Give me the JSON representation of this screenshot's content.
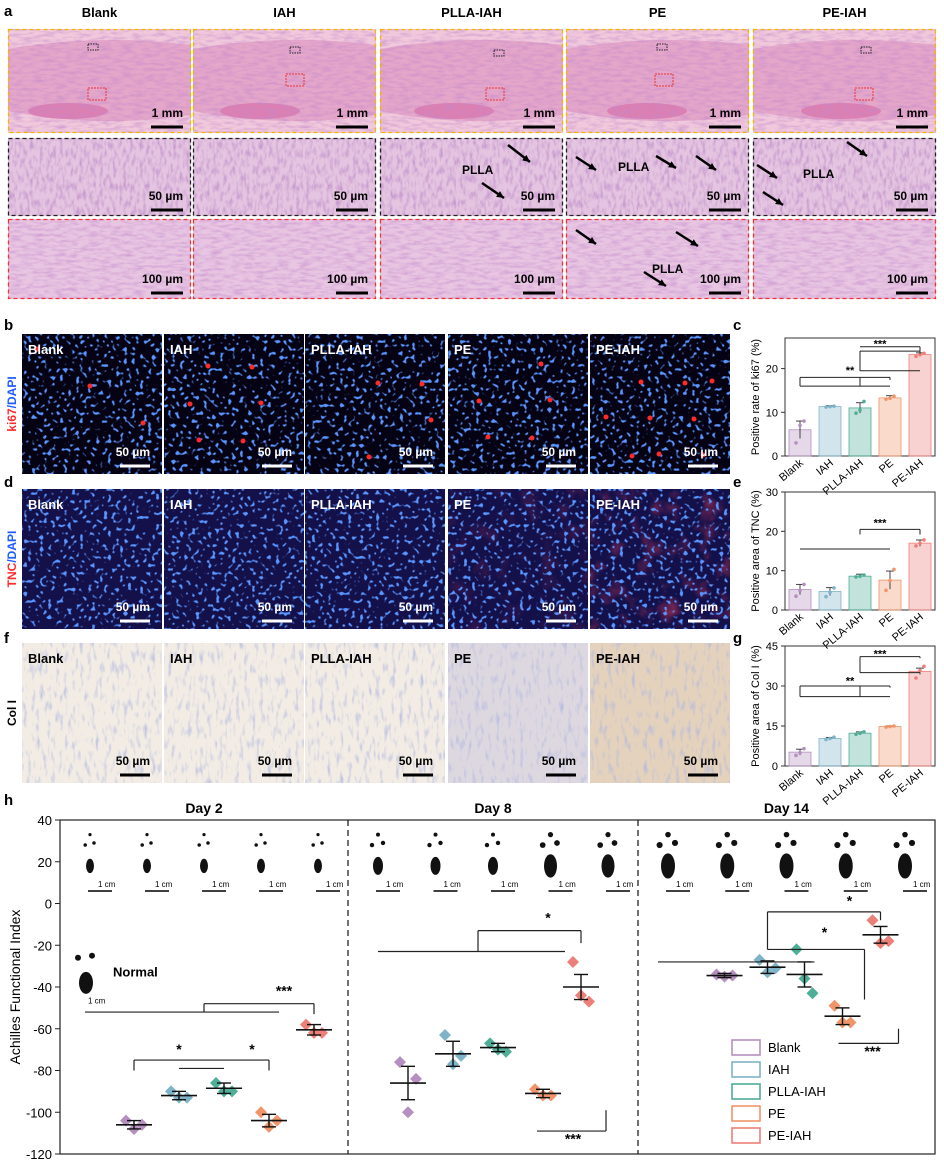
{
  "panel_letters": {
    "a": "a",
    "b": "b",
    "c": "c",
    "d": "d",
    "e": "e",
    "f": "f",
    "g": "g",
    "h": "h"
  },
  "groups": [
    "Blank",
    "IAH",
    "PLLA-IAH",
    "PE",
    "PE-IAH"
  ],
  "he": {
    "scale_top": "1 mm",
    "scale_mid": "50 µm",
    "scale_bot": "100 µm",
    "plla_label": "PLLA"
  },
  "if_ki67": {
    "ylabel_a": "ki67",
    "ylabel_b": "/DAPI",
    "scale": "50 µm"
  },
  "if_tnc": {
    "ylabel_a": "TNC",
    "ylabel_b": "/DAPI",
    "scale": "50 µm"
  },
  "ihc_col": {
    "ylabel": "Col I",
    "scale": "50 µm"
  },
  "colors": {
    "Blank": "#b58fbf",
    "IAH": "#7fb3c8",
    "PLLA-IAH": "#4fae98",
    "PE": "#f0956a",
    "PE-IAH": "#ec7f77",
    "ki67": "#ff2a2a",
    "dapi": "#1f5cff"
  },
  "chart_data": [
    {
      "type": "bar",
      "id": "c",
      "categories": [
        "Blank",
        "IAH",
        "PLLA-IAH",
        "PE",
        "PE-IAH"
      ],
      "values": [
        6,
        11.3,
        11,
        13.3,
        23.2
      ],
      "errors": [
        2,
        0.2,
        1.2,
        0.5,
        0.4
      ],
      "points": [
        [
          3,
          7,
          8
        ],
        [
          11.2,
          11.3,
          11.4
        ],
        [
          9.8,
          10.5,
          12.5
        ],
        [
          13,
          13.2,
          13.7
        ],
        [
          22.8,
          23.2,
          23.5
        ]
      ],
      "ylabel": "Positive rate of ki67 (%)",
      "ylim": [
        0,
        27
      ],
      "yticks": [
        0,
        10,
        20
      ],
      "sig": [
        {
          "text": "**"
        },
        {
          "text": "***"
        }
      ]
    },
    {
      "type": "bar",
      "id": "e",
      "categories": [
        "Blank",
        "IAH",
        "PLLA-IAH",
        "PE",
        "PE-IAH"
      ],
      "values": [
        5.2,
        4.7,
        8.6,
        7.6,
        17
      ],
      "errors": [
        1.3,
        1,
        0.5,
        2.3,
        0.8
      ],
      "points": [
        [
          3.5,
          5,
          6.5
        ],
        [
          3.4,
          4.5,
          5.6
        ],
        [
          8.4,
          8.6,
          8.9
        ],
        [
          5,
          7.5,
          10.3
        ],
        [
          16.3,
          17,
          17.8
        ]
      ],
      "ylabel": "Positive area of TNC (%)",
      "ylim": [
        0,
        30
      ],
      "yticks": [
        0,
        10,
        20,
        30
      ],
      "sig": [
        {
          "text": "***"
        }
      ]
    },
    {
      "type": "bar",
      "id": "g",
      "categories": [
        "Blank",
        "IAH",
        "PLLA-IAH",
        "PE",
        "PE-IAH"
      ],
      "values": [
        5.2,
        10.3,
        12.3,
        14.8,
        35.5
      ],
      "errors": [
        1.1,
        0.4,
        0.5,
        0.2,
        1.2
      ],
      "points": [
        [
          4,
          5,
          6.5
        ],
        [
          9.9,
          10.3,
          10.8
        ],
        [
          11.9,
          12.3,
          12.8
        ],
        [
          14.6,
          14.8,
          15
        ],
        [
          33,
          35.8,
          37.4
        ]
      ],
      "ylabel": "Positive area of Col I (%)",
      "ylim": [
        0,
        45
      ],
      "yticks": [
        0,
        15,
        30,
        45
      ],
      "sig": [
        {
          "text": "**"
        },
        {
          "text": "***"
        }
      ]
    },
    {
      "type": "scatter",
      "id": "h",
      "ylabel": "Achilles Functional Index",
      "ylim": [
        -120,
        40
      ],
      "yticks": [
        40,
        20,
        0,
        -20,
        -40,
        -60,
        -80,
        -100,
        -120
      ],
      "days": [
        "Day 2",
        "Day 8",
        "Day 14"
      ],
      "series": [
        {
          "name": "Blank",
          "means": [
            -106,
            -86,
            -34.5
          ],
          "errors": [
            2,
            8,
            1
          ],
          "points": [
            [
              -104,
              -108,
              -106
            ],
            [
              -76,
              -100,
              -84
            ],
            [
              -34,
              -35,
              -34.5
            ]
          ]
        },
        {
          "name": "IAH",
          "means": [
            -92,
            -72,
            -30.5
          ],
          "errors": [
            2,
            6,
            3
          ],
          "points": [
            [
              -90,
              -93,
              -93
            ],
            [
              -63,
              -77,
              -73
            ],
            [
              -27,
              -33,
              -31
            ]
          ]
        },
        {
          "name": "PLLA-IAH",
          "means": [
            -88.5,
            -69,
            -34
          ],
          "errors": [
            2.5,
            2,
            6
          ],
          "points": [
            [
              -86,
              -90,
              -90
            ],
            [
              -67,
              -70,
              -71
            ],
            [
              -22,
              -36,
              -43
            ]
          ]
        },
        {
          "name": "PE",
          "means": [
            -104,
            -91,
            -54
          ],
          "errors": [
            3,
            2,
            4
          ],
          "points": [
            [
              -100,
              -107,
              -104
            ],
            [
              -89,
              -92,
              -92
            ],
            [
              -49,
              -57,
              -57
            ]
          ]
        },
        {
          "name": "PE-IAH",
          "means": [
            -60.5,
            -40,
            -15
          ],
          "errors": [
            2.5,
            6,
            4
          ],
          "points": [
            [
              -58,
              -62,
              -62
            ],
            [
              -28,
              -44,
              -47
            ],
            [
              -8,
              -19,
              -18
            ]
          ]
        }
      ],
      "normal_label": "Normal",
      "scale": "1 cm",
      "sig": {
        "d2a": "*",
        "d2b": "*",
        "d2c": "***",
        "d8a": "*",
        "d8b": "***",
        "d14a": "*",
        "d14b": "*",
        "d14c": "***"
      }
    }
  ]
}
